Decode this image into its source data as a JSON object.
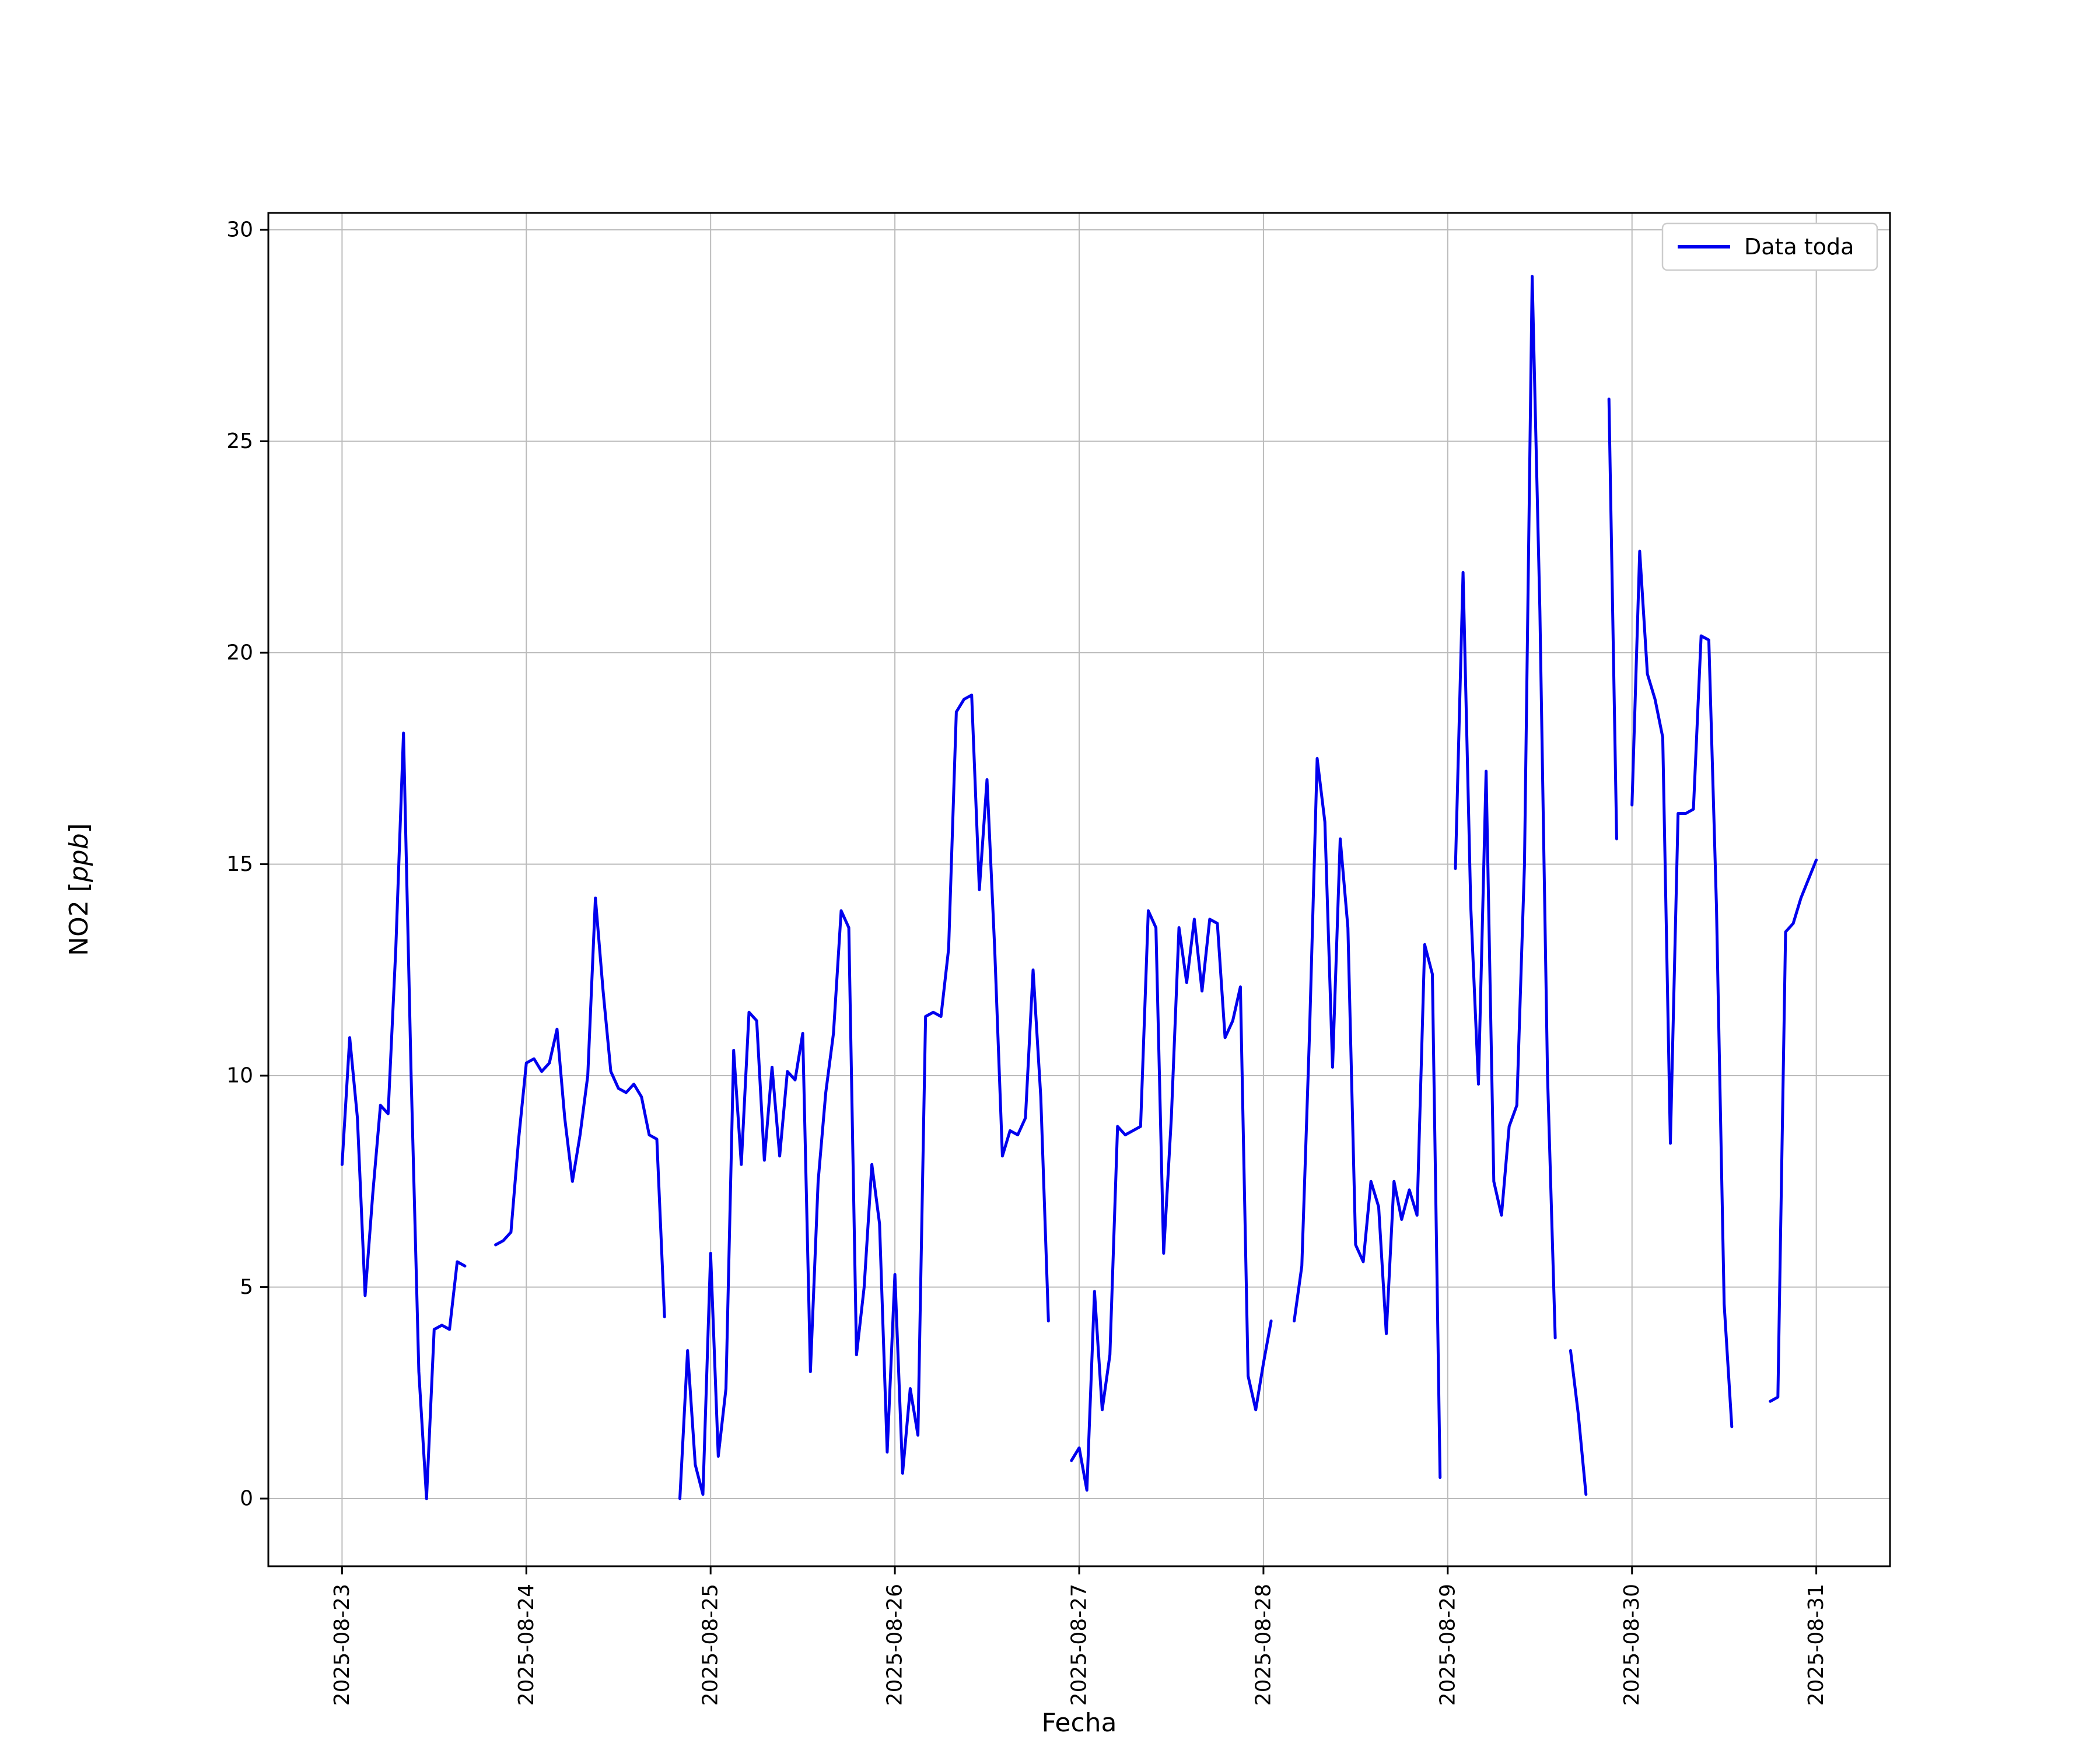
{
  "chart_data": {
    "type": "line",
    "title": "",
    "xlabel": "Fecha",
    "ylabel_prefix": "NO2 [",
    "ylabel_italic": "ppb",
    "ylabel_suffix": "]",
    "legend": {
      "label": "Data toda",
      "position": "upper right"
    },
    "line_color": "#0000ee",
    "grid": true,
    "grid_color": "#bbbbbb",
    "x_unit": "hours since 2025-08-23 00:00",
    "x_tick_hours": [
      0,
      24,
      48,
      72,
      96,
      120,
      144,
      168,
      192
    ],
    "x_tick_labels": [
      "2025-08-23",
      "2025-08-24",
      "2025-08-25",
      "2025-08-26",
      "2025-08-27",
      "2025-08-28",
      "2025-08-29",
      "2025-08-30",
      "2025-08-31"
    ],
    "y_ticks": [
      0,
      5,
      10,
      15,
      20,
      25,
      30
    ],
    "xlim": [
      -9.6,
      201.6
    ],
    "ylim": [
      -1.6,
      30.4
    ],
    "points": [
      [
        0,
        7.9
      ],
      [
        1,
        10.9
      ],
      [
        2,
        9.0
      ],
      [
        3,
        4.8
      ],
      [
        4,
        7.2
      ],
      [
        5,
        9.3
      ],
      [
        6,
        9.1
      ],
      [
        7,
        13.0
      ],
      [
        8,
        18.1
      ],
      [
        9,
        10.0
      ],
      [
        10,
        3.0
      ],
      [
        11,
        0.0
      ],
      [
        12,
        4.0
      ],
      [
        13,
        4.1
      ],
      [
        14,
        4.0
      ],
      [
        15,
        5.6
      ],
      [
        16,
        5.5
      ],
      [
        17,
        null
      ],
      [
        20,
        6.0
      ],
      [
        21,
        6.1
      ],
      [
        22,
        6.3
      ],
      [
        23,
        8.5
      ],
      [
        24,
        10.3
      ],
      [
        25,
        10.4
      ],
      [
        26,
        10.1
      ],
      [
        27,
        10.3
      ],
      [
        28,
        11.1
      ],
      [
        29,
        9.0
      ],
      [
        30,
        7.5
      ],
      [
        31,
        8.6
      ],
      [
        32,
        10.0
      ],
      [
        33,
        14.2
      ],
      [
        34,
        12.0
      ],
      [
        35,
        10.1
      ],
      [
        36,
        9.7
      ],
      [
        37,
        9.6
      ],
      [
        38,
        9.8
      ],
      [
        39,
        9.5
      ],
      [
        40,
        8.6
      ],
      [
        41,
        8.5
      ],
      [
        42,
        4.3
      ],
      [
        43,
        null
      ],
      [
        44,
        0.0
      ],
      [
        45,
        3.5
      ],
      [
        46,
        0.8
      ],
      [
        47,
        0.1
      ],
      [
        48,
        5.8
      ],
      [
        49,
        1.0
      ],
      [
        50,
        2.6
      ],
      [
        51,
        10.6
      ],
      [
        52,
        7.9
      ],
      [
        53,
        11.5
      ],
      [
        54,
        11.3
      ],
      [
        55,
        8.0
      ],
      [
        56,
        10.2
      ],
      [
        57,
        8.1
      ],
      [
        58,
        10.1
      ],
      [
        59,
        9.9
      ],
      [
        60,
        11.0
      ],
      [
        61,
        3.0
      ],
      [
        62,
        7.5
      ],
      [
        63,
        9.6
      ],
      [
        64,
        11.0
      ],
      [
        65,
        13.9
      ],
      [
        66,
        13.5
      ],
      [
        67,
        3.4
      ],
      [
        68,
        5.0
      ],
      [
        69,
        7.9
      ],
      [
        70,
        6.5
      ],
      [
        71,
        1.1
      ],
      [
        72,
        5.3
      ],
      [
        73,
        0.6
      ],
      [
        74,
        2.6
      ],
      [
        75,
        1.5
      ],
      [
        76,
        11.4
      ],
      [
        77,
        11.5
      ],
      [
        78,
        11.4
      ],
      [
        79,
        13.0
      ],
      [
        80,
        18.6
      ],
      [
        81,
        18.9
      ],
      [
        82,
        19.0
      ],
      [
        83,
        14.4
      ],
      [
        84,
        17.0
      ],
      [
        85,
        13.0
      ],
      [
        86,
        8.1
      ],
      [
        87,
        8.7
      ],
      [
        88,
        8.6
      ],
      [
        89,
        9.0
      ],
      [
        90,
        12.5
      ],
      [
        91,
        9.5
      ],
      [
        92,
        4.2
      ],
      [
        93,
        null
      ],
      [
        95,
        0.9
      ],
      [
        96,
        1.2
      ],
      [
        97,
        0.2
      ],
      [
        98,
        4.9
      ],
      [
        99,
        2.1
      ],
      [
        100,
        3.4
      ],
      [
        101,
        8.8
      ],
      [
        102,
        8.6
      ],
      [
        103,
        8.7
      ],
      [
        104,
        8.8
      ],
      [
        105,
        13.9
      ],
      [
        106,
        13.5
      ],
      [
        107,
        5.8
      ],
      [
        108,
        9.0
      ],
      [
        109,
        13.5
      ],
      [
        110,
        12.2
      ],
      [
        111,
        13.7
      ],
      [
        112,
        12.0
      ],
      [
        113,
        13.7
      ],
      [
        114,
        13.6
      ],
      [
        115,
        10.9
      ],
      [
        116,
        11.3
      ],
      [
        117,
        12.1
      ],
      [
        118,
        2.9
      ],
      [
        119,
        2.1
      ],
      [
        120,
        3.2
      ],
      [
        121,
        4.2
      ],
      [
        122,
        null
      ],
      [
        124,
        4.2
      ],
      [
        125,
        5.5
      ],
      [
        126,
        11.0
      ],
      [
        127,
        17.5
      ],
      [
        128,
        16.0
      ],
      [
        129,
        10.2
      ],
      [
        130,
        15.6
      ],
      [
        131,
        13.5
      ],
      [
        132,
        6.0
      ],
      [
        133,
        5.6
      ],
      [
        134,
        7.5
      ],
      [
        135,
        6.9
      ],
      [
        136,
        3.9
      ],
      [
        137,
        7.5
      ],
      [
        138,
        6.6
      ],
      [
        139,
        7.3
      ],
      [
        140,
        6.7
      ],
      [
        141,
        13.1
      ],
      [
        142,
        12.4
      ],
      [
        143,
        0.5
      ],
      [
        144,
        null
      ],
      [
        145,
        14.9
      ],
      [
        146,
        21.9
      ],
      [
        147,
        14.0
      ],
      [
        148,
        9.8
      ],
      [
        149,
        17.2
      ],
      [
        150,
        7.5
      ],
      [
        151,
        6.7
      ],
      [
        152,
        8.8
      ],
      [
        153,
        9.3
      ],
      [
        154,
        15.0
      ],
      [
        155,
        28.9
      ],
      [
        156,
        21.0
      ],
      [
        157,
        10.0
      ],
      [
        158,
        3.8
      ],
      [
        159,
        null
      ],
      [
        160,
        3.5
      ],
      [
        161,
        2.0
      ],
      [
        162,
        0.1
      ],
      [
        163,
        null
      ],
      [
        165,
        26.0
      ],
      [
        166,
        15.6
      ],
      [
        167,
        null
      ],
      [
        168,
        16.4
      ],
      [
        169,
        22.4
      ],
      [
        170,
        19.5
      ],
      [
        171,
        18.9
      ],
      [
        172,
        18.0
      ],
      [
        173,
        8.4
      ],
      [
        174,
        16.2
      ],
      [
        175,
        16.2
      ],
      [
        176,
        16.3
      ],
      [
        177,
        20.4
      ],
      [
        178,
        20.3
      ],
      [
        179,
        14.0
      ],
      [
        180,
        4.6
      ],
      [
        181,
        1.7
      ],
      [
        182,
        null
      ],
      [
        186,
        2.3
      ],
      [
        187,
        2.4
      ],
      [
        188,
        13.4
      ],
      [
        189,
        13.6
      ],
      [
        190,
        14.2
      ],
      [
        192,
        15.1
      ]
    ]
  }
}
